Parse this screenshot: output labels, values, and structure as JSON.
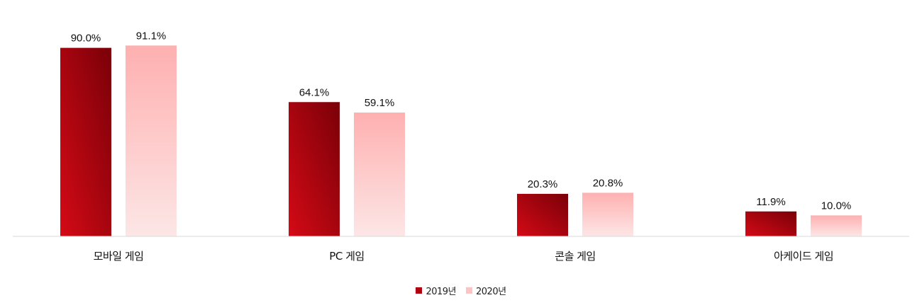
{
  "chart_data": {
    "type": "bar",
    "categories": [
      "모바일 게임",
      "PC 게임",
      "콘솔 게임",
      "아케이드 게임"
    ],
    "series": [
      {
        "name": "2019년",
        "values": [
          90.0,
          64.1,
          20.3,
          11.9
        ],
        "labels": [
          "90.0%",
          "64.1%",
          "20.3%",
          "11.9%"
        ]
      },
      {
        "name": "2020년",
        "values": [
          91.1,
          59.1,
          20.8,
          10.0
        ],
        "labels": [
          "91.1%",
          "59.1%",
          "20.8%",
          "10.0%"
        ]
      }
    ],
    "ylim": [
      0,
      100
    ],
    "grid": false,
    "legend_position": "bottom",
    "colors": {
      "series_2019_dark": "#7a0008",
      "series_2019_light": "#d40a16",
      "series_2020_top": "#feb0b0",
      "series_2020_bottom": "#fde6e6",
      "axis": "#d9d9d9",
      "legend_2019": "#b00010",
      "legend_2020": "#fcc4c4"
    }
  }
}
